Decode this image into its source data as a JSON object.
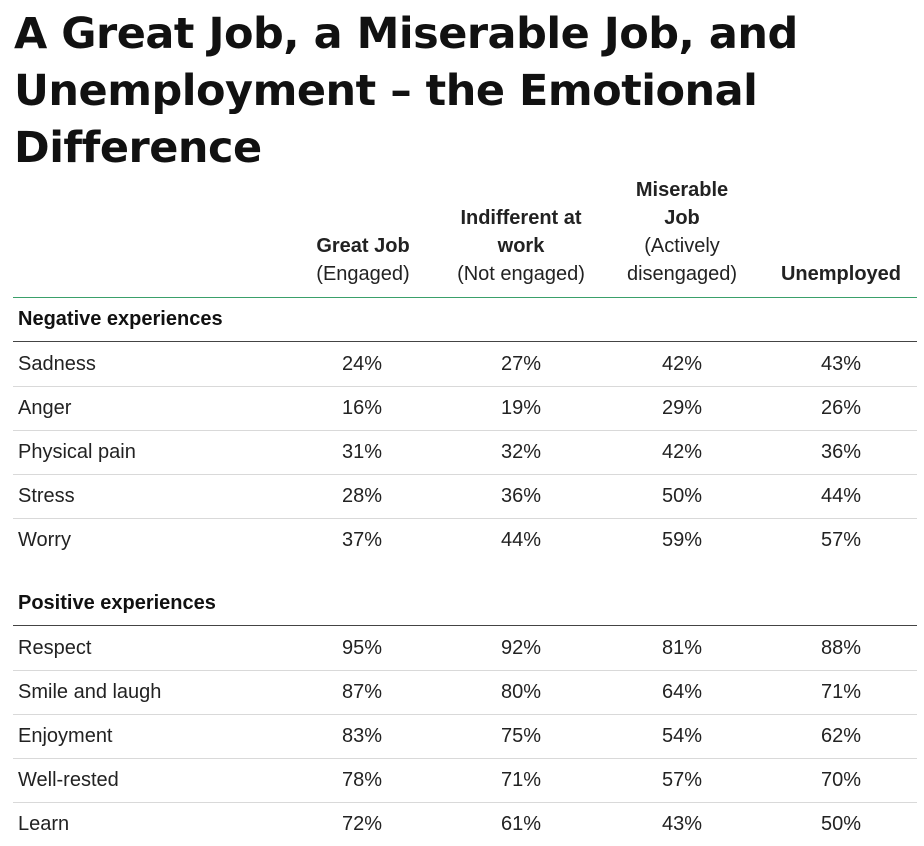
{
  "title": "A Great Job, a Miserable Job, and Unemployment – the Emotional Difference",
  "columns": [
    {
      "bold": "Great Job",
      "sub": "(Engaged)"
    },
    {
      "bold": "Indifferent at work",
      "sub": "(Not engaged)"
    },
    {
      "bold": "Miserable Job",
      "sub": "(Actively disengaged)"
    },
    {
      "bold": "Unemployed",
      "sub": ""
    }
  ],
  "chart_data": {
    "type": "table",
    "title": "A Great Job, a Miserable Job, and Unemployment – the Emotional Difference",
    "columns": [
      "Great Job (Engaged)",
      "Indifferent at work (Not engaged)",
      "Miserable Job (Actively disengaged)",
      "Unemployed"
    ],
    "sections": [
      {
        "name": "Negative experiences",
        "rows": [
          {
            "label": "Sadness",
            "values": [
              "24%",
              "27%",
              "42%",
              "43%"
            ]
          },
          {
            "label": "Anger",
            "values": [
              "16%",
              "19%",
              "29%",
              "26%"
            ]
          },
          {
            "label": "Physical pain",
            "values": [
              "31%",
              "32%",
              "42%",
              "36%"
            ]
          },
          {
            "label": "Stress",
            "values": [
              "28%",
              "36%",
              "50%",
              "44%"
            ]
          },
          {
            "label": "Worry",
            "values": [
              "37%",
              "44%",
              "59%",
              "57%"
            ]
          }
        ]
      },
      {
        "name": "Positive experiences",
        "rows": [
          {
            "label": "Respect",
            "values": [
              "95%",
              "92%",
              "81%",
              "88%"
            ]
          },
          {
            "label": "Smile and laugh",
            "values": [
              "87%",
              "80%",
              "64%",
              "71%"
            ]
          },
          {
            "label": "Enjoyment",
            "values": [
              "83%",
              "75%",
              "54%",
              "62%"
            ]
          },
          {
            "label": "Well-rested",
            "values": [
              "78%",
              "71%",
              "57%",
              "70%"
            ]
          },
          {
            "label": "Learn",
            "values": [
              "72%",
              "61%",
              "43%",
              "50%"
            ]
          }
        ]
      }
    ]
  }
}
